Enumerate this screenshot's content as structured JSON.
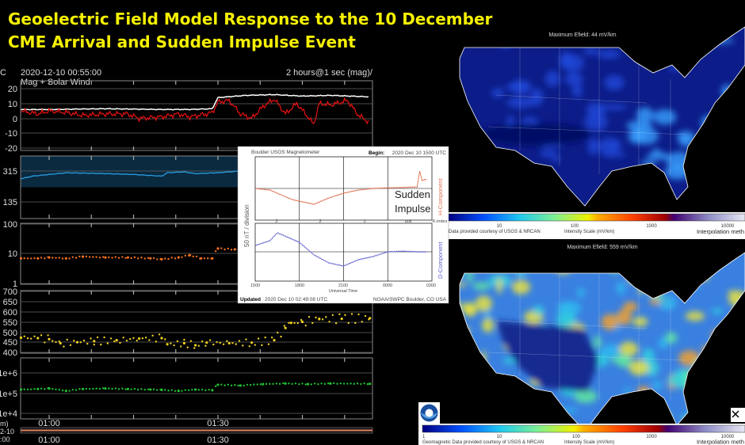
{
  "slide": {
    "title_line1": "Geoelectric Field Model Response to the 10 December",
    "title_line2": "CME Arrival and Sudden Impulse Event"
  },
  "solar_wind_plot": {
    "timestamp": "2020-12-10 00:55:00",
    "subtitle": "Mag + Solar Wind",
    "range_label": "2 hours@1 sec (mag)/",
    "left_edge_label": "C",
    "bottom_left_labels": [
      "m)",
      "2-10",
      ":00"
    ]
  },
  "inset": {
    "title": "Boulder USGS Magnetometer",
    "begin_label": "Begin:",
    "begin_value": "2020 Dec 10 1500 UTC",
    "ylabel": "50 nT / division",
    "h_label": "H-Component",
    "d_label": "D-Component",
    "annotation_line1": "Sudden",
    "annotation_line2": "Impulse",
    "k_index": [
      "2",
      "2",
      "1",
      "unk"
    ],
    "k_index_label": "K-index",
    "xlabel": "Universal Time",
    "updated_label": "Updated",
    "updated_value": "2020 Dec 10 02:49:08 UTC",
    "credit": "NOAA/SWPC Boulder, CO USA"
  },
  "maps": [
    {
      "max_label": "Maximum Efield: 44 mV/km",
      "credit": "Data provided courtesy of USGS & NRCAN",
      "scale_label": "Intensity Scale (mV/km)",
      "method_label": "Interpolation meth",
      "scale_ticks": [
        "10",
        "100",
        "1000",
        "10000"
      ]
    },
    {
      "max_label": "Maximum Efield: 559 mV/km",
      "credit": "Geomagnetic Data provided courtesy of USGS & NRCAN",
      "scale_label": "Intensity Scale (mV/km)",
      "method_label": "Interpolation meth",
      "scale_ticks": [
        "1",
        "10",
        "100",
        "1000",
        "10000"
      ]
    }
  ],
  "colors": {
    "title": "#f5f000",
    "bt": "#ffffff",
    "bz": "#e01010",
    "phi": "#2a9de0",
    "density": "#f07020",
    "speed": "#f0d020",
    "temperature": "#20c030",
    "h_component": "#e07050",
    "d_component": "#6060d0"
  },
  "chart_data": [
    {
      "type": "line",
      "panel": "magnetic field",
      "x_ticks": [
        "01:00",
        "01:30"
      ],
      "y_ticks": [
        "20",
        "10",
        "0",
        "-10",
        "-20"
      ],
      "ylim": [
        -20,
        20
      ],
      "series": [
        {
          "key": "bt",
          "points": [
            [
              "00:55",
              6
            ],
            [
              "01:00",
              6
            ],
            [
              "01:10",
              6.5
            ],
            [
              "01:20",
              6
            ],
            [
              "01:25",
              6
            ],
            [
              "01:29",
              6.5
            ],
            [
              "01:30",
              14
            ],
            [
              "01:35",
              15.5
            ],
            [
              "01:40",
              16
            ],
            [
              "01:45",
              15
            ],
            [
              "01:50",
              15.5
            ],
            [
              "01:57",
              14.5
            ]
          ]
        },
        {
          "key": "bz",
          "points": [
            [
              "00:55",
              5
            ],
            [
              "00:58",
              3
            ],
            [
              "01:00",
              5
            ],
            [
              "01:03",
              4
            ],
            [
              "01:06",
              2
            ],
            [
              "01:10",
              3
            ],
            [
              "01:14",
              3
            ],
            [
              "01:16",
              0
            ],
            [
              "01:20",
              1
            ],
            [
              "01:23",
              3
            ],
            [
              "01:25",
              1
            ],
            [
              "01:28",
              3
            ],
            [
              "01:29",
              4
            ],
            [
              "01:30",
              11
            ],
            [
              "01:32",
              12
            ],
            [
              "01:34",
              3
            ],
            [
              "01:36",
              0
            ],
            [
              "01:38",
              8
            ],
            [
              "01:40",
              13
            ],
            [
              "01:42",
              3
            ],
            [
              "01:44",
              10
            ],
            [
              "01:46",
              1
            ],
            [
              "01:47",
              -4
            ],
            [
              "01:48",
              10
            ],
            [
              "01:50",
              9
            ],
            [
              "01:53",
              12
            ],
            [
              "01:55",
              2
            ],
            [
              "01:57",
              -3
            ]
          ]
        }
      ]
    },
    {
      "type": "line",
      "panel": "phi",
      "y_ticks": [
        "315",
        "135"
      ],
      "ylim": [
        45,
        405
      ],
      "series": [
        {
          "key": "phi",
          "points": [
            [
              "00:55",
              270
            ],
            [
              "00:57",
              285
            ],
            [
              "01:00",
              295
            ],
            [
              "01:03",
              305
            ],
            [
              "01:10",
              300
            ],
            [
              "01:15",
              295
            ],
            [
              "01:20",
              285
            ],
            [
              "01:21",
              305
            ],
            [
              "01:24",
              310
            ],
            [
              "01:26",
              300
            ],
            [
              "01:30",
              305
            ],
            [
              "01:34",
              315
            ],
            [
              "01:36",
              305
            ],
            [
              "01:40",
              300
            ],
            [
              "01:45",
              300
            ],
            [
              "01:50",
              300
            ],
            [
              "01:57",
              300
            ]
          ]
        }
      ]
    },
    {
      "type": "scatter",
      "panel": "density",
      "y_ticks": [
        "100",
        "10",
        "1"
      ],
      "ylim": [
        1,
        100
      ],
      "log": true,
      "series": [
        {
          "key": "density",
          "points": [
            [
              "00:55",
              7
            ],
            [
              "00:58",
              7
            ],
            [
              "01:00",
              7.5
            ],
            [
              "01:03",
              7
            ],
            [
              "01:06",
              8
            ],
            [
              "01:10",
              7.5
            ],
            [
              "01:14",
              7.5
            ],
            [
              "01:18",
              7
            ],
            [
              "01:20",
              6.5
            ],
            [
              "01:23",
              7.5
            ],
            [
              "01:25",
              9
            ],
            [
              "01:27",
              7
            ],
            [
              "01:29",
              7
            ],
            [
              "01:30",
              15
            ],
            [
              "01:33",
              14
            ],
            [
              "01:36",
              15
            ],
            [
              "01:40",
              16
            ],
            [
              "01:45",
              15
            ],
            [
              "01:50",
              15
            ],
            [
              "01:57",
              16
            ]
          ]
        }
      ]
    },
    {
      "type": "scatter",
      "panel": "speed",
      "y_ticks": [
        "700",
        "650",
        "600",
        "550",
        "500",
        "450",
        "400"
      ],
      "ylim": [
        400,
        700
      ],
      "series": [
        {
          "key": "speed",
          "points": [
            [
              "00:55",
              472
            ],
            [
              "00:58",
              470
            ],
            [
              "01:00",
              465
            ],
            [
              "01:02",
              445
            ],
            [
              "01:05",
              450
            ],
            [
              "01:08",
              455
            ],
            [
              "01:12",
              460
            ],
            [
              "01:16",
              468
            ],
            [
              "01:20",
              470
            ],
            [
              "01:21",
              440
            ],
            [
              "01:24",
              445
            ],
            [
              "01:26",
              435
            ],
            [
              "01:28",
              448
            ],
            [
              "01:32",
              445
            ],
            [
              "01:36",
              448
            ],
            [
              "01:40",
              460
            ],
            [
              "01:42",
              520
            ],
            [
              "01:43",
              545
            ],
            [
              "01:45",
              550
            ],
            [
              "01:48",
              565
            ],
            [
              "01:52",
              565
            ],
            [
              "01:57",
              568
            ]
          ]
        }
      ]
    },
    {
      "type": "scatter",
      "panel": "temperature",
      "y_ticks": [
        "1e+6",
        "1e+5",
        "1e+4"
      ],
      "ylim": [
        6000,
        5000000
      ],
      "log": true,
      "series": [
        {
          "key": "temperature",
          "points": [
            [
              "00:55",
              150000
            ],
            [
              "00:58",
              160000
            ],
            [
              "01:00",
              170000
            ],
            [
              "01:03",
              130000
            ],
            [
              "01:06",
              160000
            ],
            [
              "01:10",
              170000
            ],
            [
              "01:14",
              160000
            ],
            [
              "01:18",
              150000
            ],
            [
              "01:20",
              145000
            ],
            [
              "01:23",
              130000
            ],
            [
              "01:26",
              150000
            ],
            [
              "01:29",
              140000
            ],
            [
              "01:30",
              260000
            ],
            [
              "01:34",
              240000
            ],
            [
              "01:38",
              280000
            ],
            [
              "01:42",
              300000
            ],
            [
              "01:46",
              280000
            ],
            [
              "01:50",
              300000
            ],
            [
              "01:57",
              290000
            ]
          ]
        }
      ]
    },
    {
      "type": "line",
      "panel": "inset magnetometer",
      "x_ticks": [
        "1500",
        "1800",
        "2100",
        "0000",
        "0300"
      ],
      "series": [
        {
          "key": "h_component",
          "points": [
            [
              "15:00",
              0
            ],
            [
              "16:00",
              -5
            ],
            [
              "17:00",
              -25
            ],
            [
              "17:30",
              -35
            ],
            [
              "18:00",
              -40
            ],
            [
              "19:00",
              -50
            ],
            [
              "20:00",
              -30
            ],
            [
              "21:00",
              -15
            ],
            [
              "22:00",
              -5
            ],
            [
              "23:00",
              0
            ],
            [
              "00:00",
              2
            ],
            [
              "01:00",
              3
            ],
            [
              "02:00",
              5
            ],
            [
              "02:10",
              55
            ],
            [
              "02:20",
              25
            ],
            [
              "02:40",
              30
            ]
          ]
        },
        {
          "key": "d_component",
          "points": [
            [
              "15:00",
              20
            ],
            [
              "16:00",
              35
            ],
            [
              "16:30",
              60
            ],
            [
              "17:00",
              50
            ],
            [
              "18:00",
              30
            ],
            [
              "19:00",
              -10
            ],
            [
              "20:00",
              -35
            ],
            [
              "21:00",
              -45
            ],
            [
              "22:00",
              -25
            ],
            [
              "23:00",
              -15
            ],
            [
              "00:00",
              0
            ],
            [
              "01:00",
              2
            ],
            [
              "02:00",
              0
            ],
            [
              "02:40",
              0
            ]
          ]
        }
      ]
    }
  ]
}
